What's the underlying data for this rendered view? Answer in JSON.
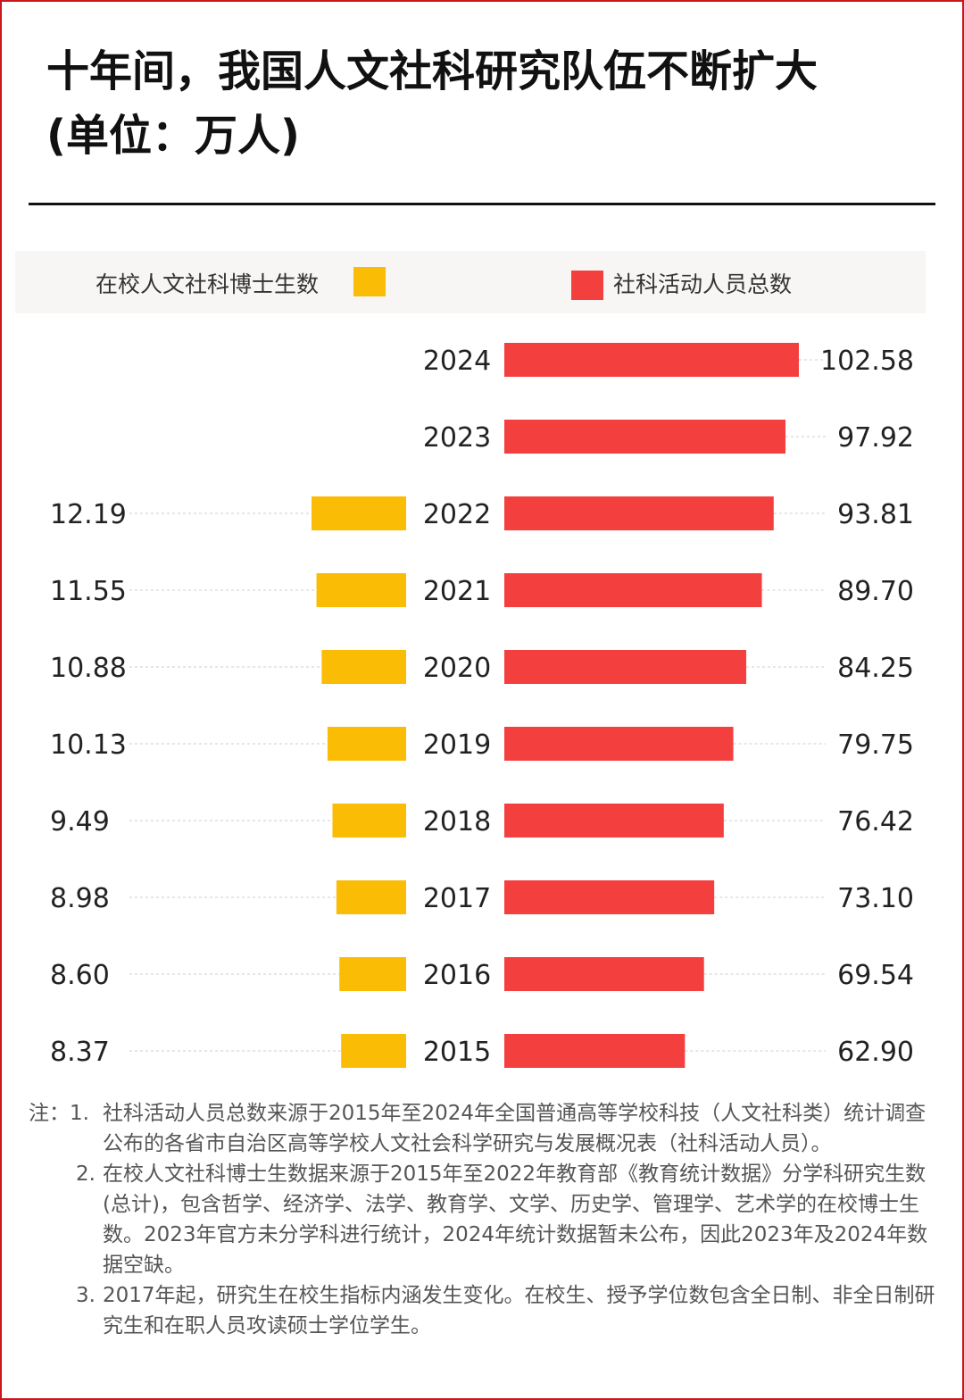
{
  "title": "十年间，我国人文社科研究队伍不断扩大",
  "subtitle": "(单位：万人)",
  "chart_data": {
    "type": "bar",
    "orientation": "horizontal-butterfly",
    "title": "十年间，我国人文社科研究队伍不断扩大",
    "unit": "(单位：万人)",
    "categories": [
      "2024",
      "2023",
      "2022",
      "2021",
      "2020",
      "2019",
      "2018",
      "2017",
      "2016",
      "2015"
    ],
    "series": [
      {
        "name": "在校人文社科博士生数",
        "color": "#fbbc05",
        "side": "left",
        "values": [
          null,
          null,
          12.19,
          11.55,
          10.88,
          10.13,
          9.49,
          8.98,
          8.6,
          8.37
        ]
      },
      {
        "name": "社科活动人员总数",
        "color": "#f43f3f",
        "side": "right",
        "values": [
          102.58,
          97.92,
          93.81,
          89.7,
          84.25,
          79.75,
          76.42,
          73.1,
          69.54,
          62.9
        ]
      }
    ],
    "value_labels_left": [
      "",
      "",
      "12.19",
      "11.55",
      "10.88",
      "10.13",
      "9.49",
      "8.98",
      "8.60",
      "8.37"
    ],
    "value_labels_right": [
      "102.58",
      "97.92",
      "93.81",
      "89.70",
      "84.25",
      "79.75",
      "76.42",
      "73.10",
      "69.54",
      "62.90"
    ],
    "legend_placement": "top",
    "grid": false
  },
  "notes": [
    {
      "prefix": "注：1.",
      "text": "社科活动人员总数来源于2015年至2024年全国普通高等学校科技（人文社科类）统计调查公布的各省市自治区高等学校人文社会科学研究与发展概况表（社科活动人员）。"
    },
    {
      "prefix": "2.",
      "text": "在校人文社科博士生数据来源于2015年至2022年教育部《教育统计数据》分学科研究生数(总计)，包含哲学、经济学、法学、教育学、文学、历史学、管理学、艺术学的在校博士生数。2023年官方未分学科进行统计，2024年统计数据暂未公布，因此2023年及2024年数据空缺。"
    },
    {
      "prefix": "3.",
      "text": "2017年起，研究生在校生指标内涵发生变化。在校生、授予学位数包含全日制、非全日制研究生和在职人员攻读硕士学位学生。"
    }
  ]
}
